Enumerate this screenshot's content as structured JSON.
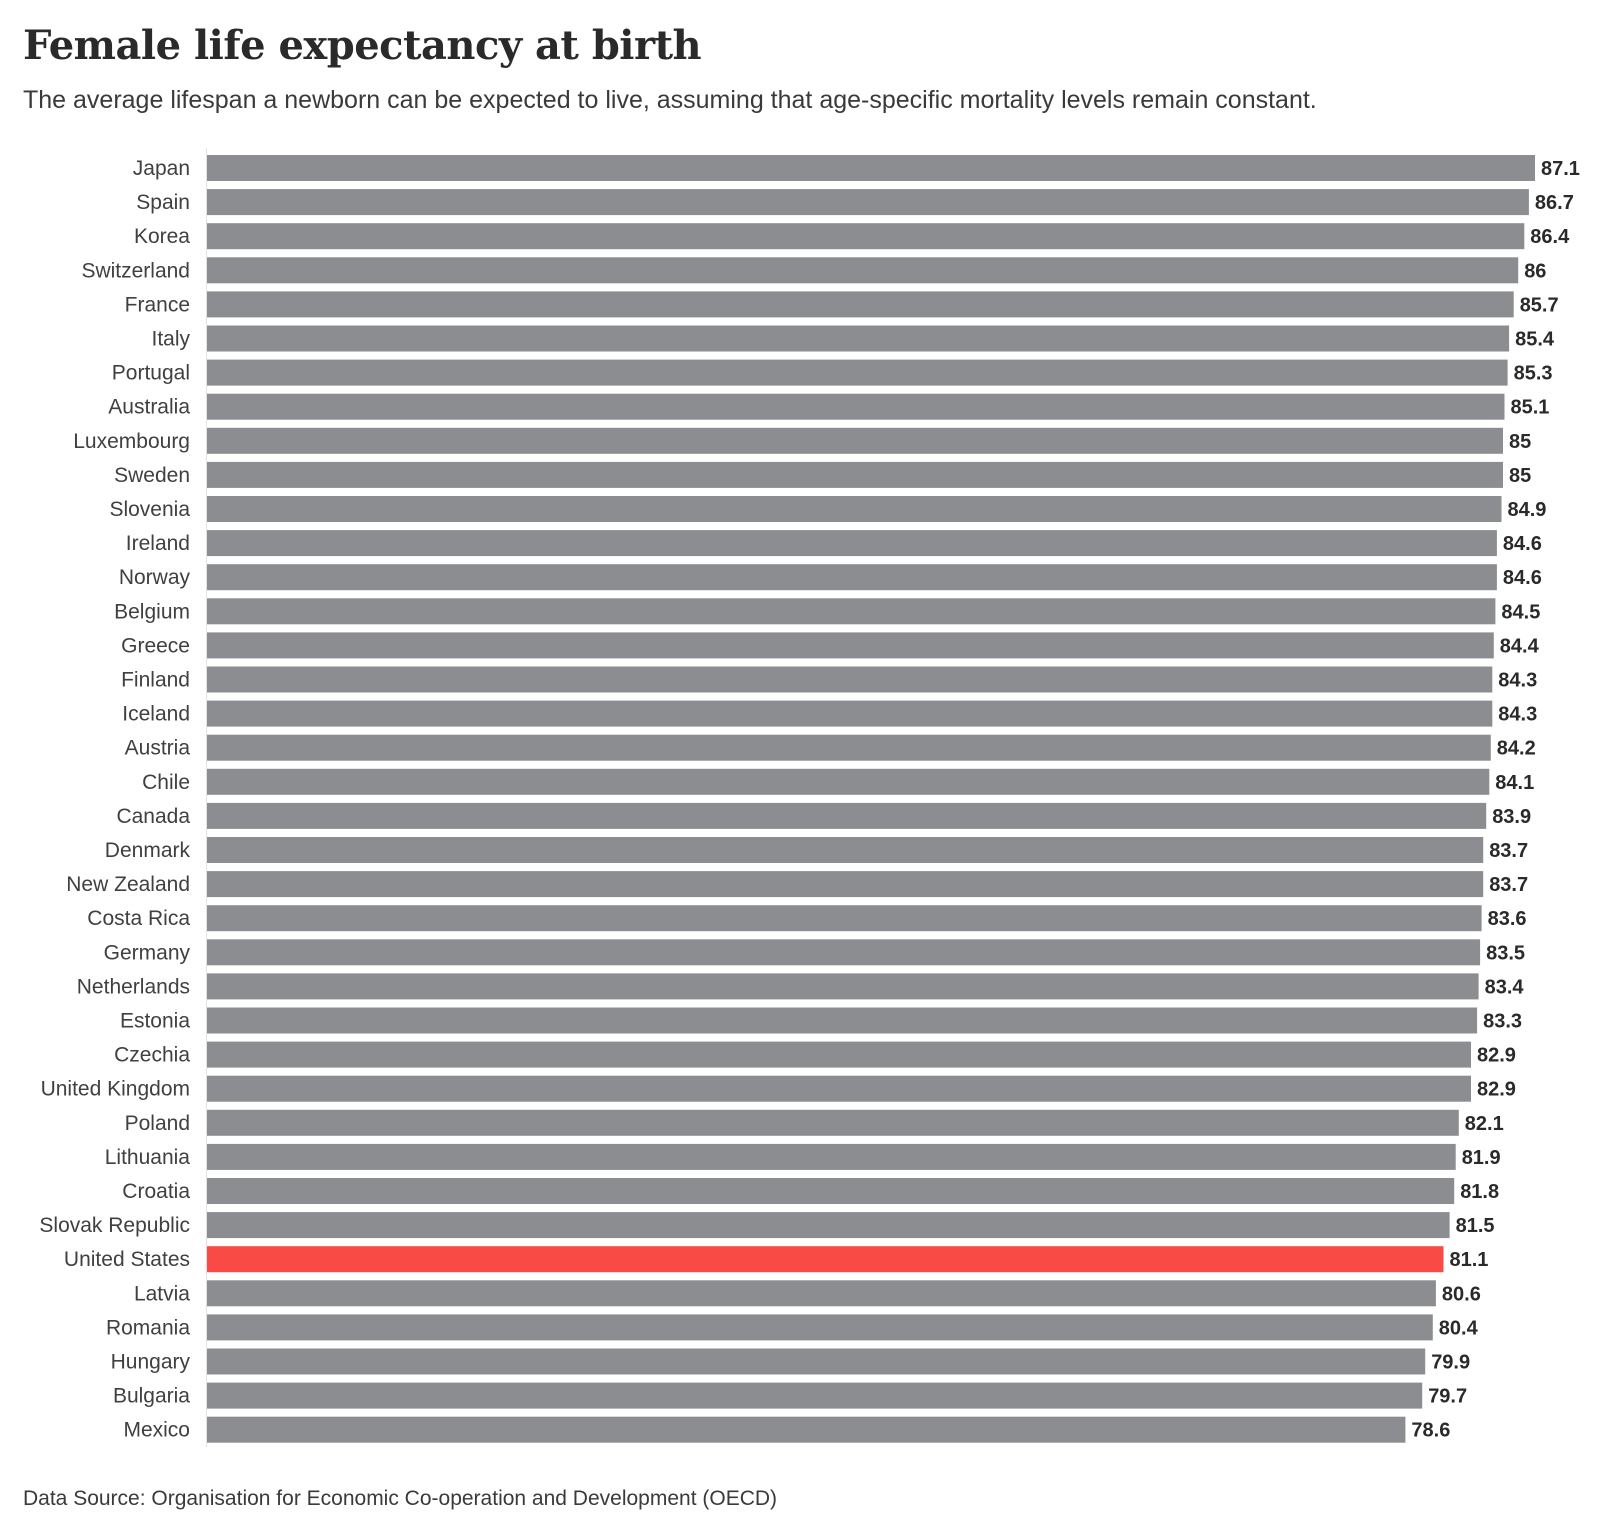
{
  "chart_data": {
    "type": "bar",
    "orientation": "horizontal",
    "title": "Female life expectancy at birth",
    "subtitle": "The average lifespan a newborn can be expected to live, assuming that age-specific mortality levels remain constant.",
    "source": "Data Source: Organisation for Economic Co-operation and Development (OECD)",
    "xlabel": "",
    "ylabel": "",
    "xlim": [
      0,
      87.1
    ],
    "grid": false,
    "legend": "none",
    "default_color": "#8c8d91",
    "highlight_color": "#fa4a45",
    "highlight_category": "United States",
    "categories": [
      "Japan",
      "Spain",
      "Korea",
      "Switzerland",
      "France",
      "Italy",
      "Portugal",
      "Australia",
      "Luxembourg",
      "Sweden",
      "Slovenia",
      "Ireland",
      "Norway",
      "Belgium",
      "Greece",
      "Finland",
      "Iceland",
      "Austria",
      "Chile",
      "Canada",
      "Denmark",
      "New Zealand",
      "Costa Rica",
      "Germany",
      "Netherlands",
      "Estonia",
      "Czechia",
      "United Kingdom",
      "Poland",
      "Lithuania",
      "Croatia",
      "Slovak Republic",
      "United States",
      "Latvia",
      "Romania",
      "Hungary",
      "Bulgaria",
      "Mexico"
    ],
    "values": [
      87.1,
      86.7,
      86.4,
      86,
      85.7,
      85.4,
      85.3,
      85.1,
      85,
      85,
      84.9,
      84.6,
      84.6,
      84.5,
      84.4,
      84.3,
      84.3,
      84.2,
      84.1,
      83.9,
      83.7,
      83.7,
      83.6,
      83.5,
      83.4,
      83.3,
      82.9,
      82.9,
      82.1,
      81.9,
      81.8,
      81.5,
      81.1,
      80.6,
      80.4,
      79.9,
      79.7,
      78.6
    ]
  }
}
